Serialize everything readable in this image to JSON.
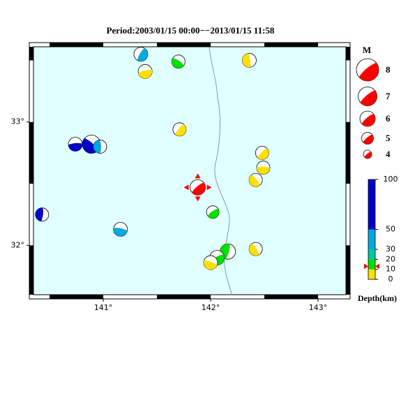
{
  "chart_data": {
    "type": "focal-map",
    "title": "Period:2003/01/15 00:00−−2013/01/15 11:58",
    "xlim": [
      140.35,
      143.26
    ],
    "ylim": [
      31.6,
      33.61
    ],
    "xticks": [
      {
        "value": 141,
        "label": "141°"
      },
      {
        "value": 142,
        "label": "142°"
      },
      {
        "value": 143,
        "label": "143°"
      }
    ],
    "yticks": [
      {
        "value": 32,
        "label": "32°"
      },
      {
        "value": 33,
        "label": "33°"
      }
    ],
    "magnitude_title": "M",
    "magnitude_legend": [
      8,
      7,
      6,
      5,
      4
    ],
    "depth_title": "Depth(km)",
    "depth_lim": [
      0,
      100
    ],
    "depth_ticks": [
      100,
      50,
      30,
      20,
      10,
      0
    ],
    "depth_bins": [
      0,
      10,
      20,
      30,
      50,
      100
    ],
    "depth_colors": [
      "#ffe000",
      "#00e000",
      "#00c8a0",
      "#00a8e0",
      "#0000c8"
    ],
    "main_color": "#ff0000",
    "sea_color": "#e0ffff",
    "events": {
      "lon": [
        141.35,
        141.39,
        141.7,
        142.36,
        141.71,
        140.74,
        140.89,
        140.97,
        142.48,
        142.49,
        142.42,
        140.43,
        142.02,
        141.16,
        142.42,
        142.16,
        142.06,
        142.0
      ],
      "lat": [
        33.55,
        33.41,
        33.49,
        33.5,
        32.94,
        32.82,
        32.82,
        32.8,
        32.75,
        32.63,
        32.53,
        32.25,
        32.27,
        32.13,
        31.97,
        31.95,
        31.9,
        31.86
      ],
      "depth": [
        35,
        5,
        15,
        5,
        5,
        80,
        80,
        45,
        5,
        5,
        5,
        80,
        15,
        45,
        5,
        15,
        15,
        5
      ],
      "magnitude": [
        5.6,
        5.6,
        5.4,
        5.6,
        5.4,
        5.6,
        6.8,
        5.4,
        5.4,
        5.4,
        5.4,
        5.4,
        5.2,
        5.6,
        5.4,
        6.0,
        5.8,
        5.6
      ]
    },
    "main_event": {
      "lon": 141.88,
      "lat": 32.47,
      "depth": 13,
      "magnitude": 6.0
    }
  }
}
